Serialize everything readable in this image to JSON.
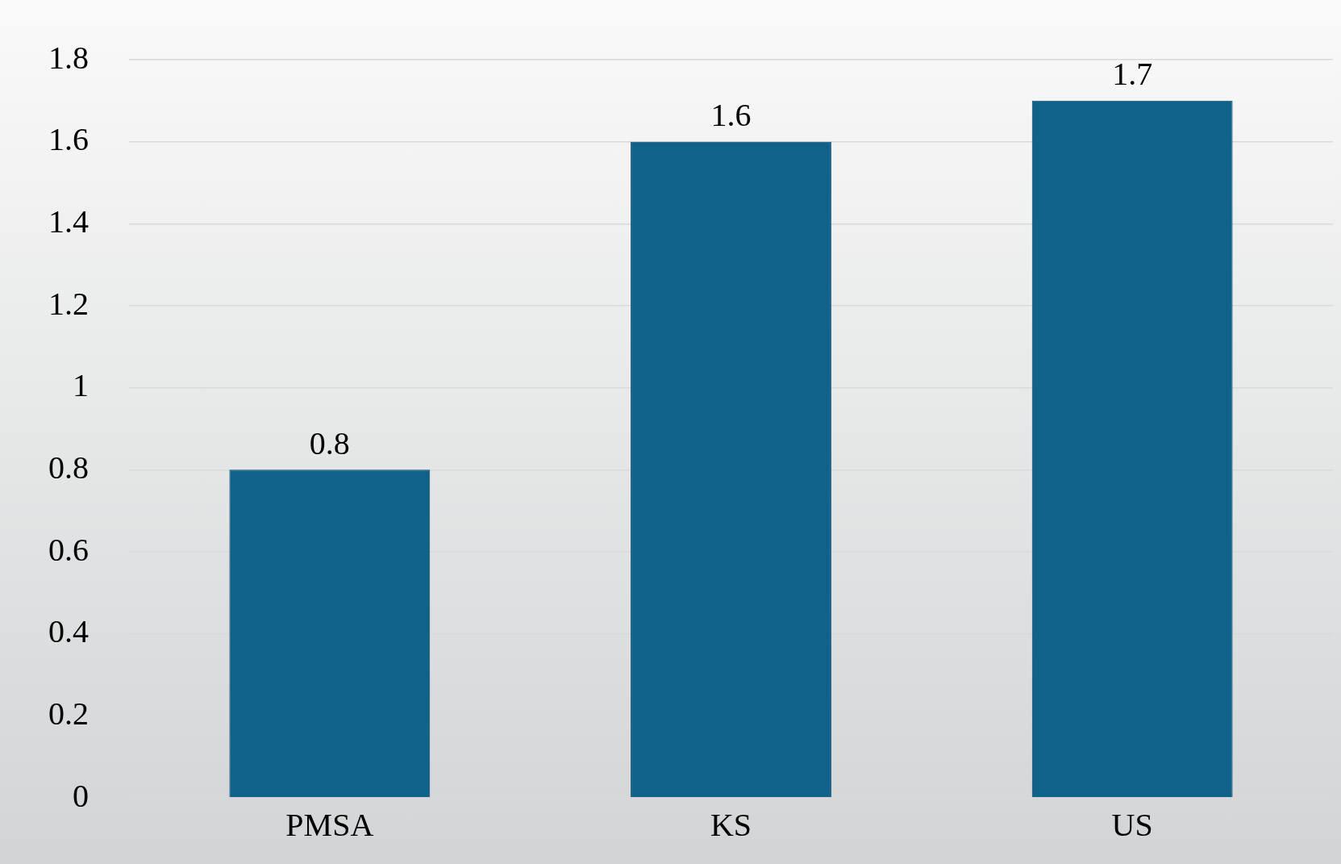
{
  "chart_data": {
    "type": "bar",
    "categories": [
      "PMSA",
      "KS",
      "US"
    ],
    "values": [
      0.8,
      1.6,
      1.7
    ],
    "color": "#11628b",
    "ylim": [
      0,
      1.8
    ],
    "yticks": [
      0,
      0.2,
      0.4,
      0.6,
      0.8,
      1,
      1.2,
      1.4,
      1.6,
      1.8
    ],
    "grid": "y",
    "data_labels": true,
    "legend": false
  }
}
